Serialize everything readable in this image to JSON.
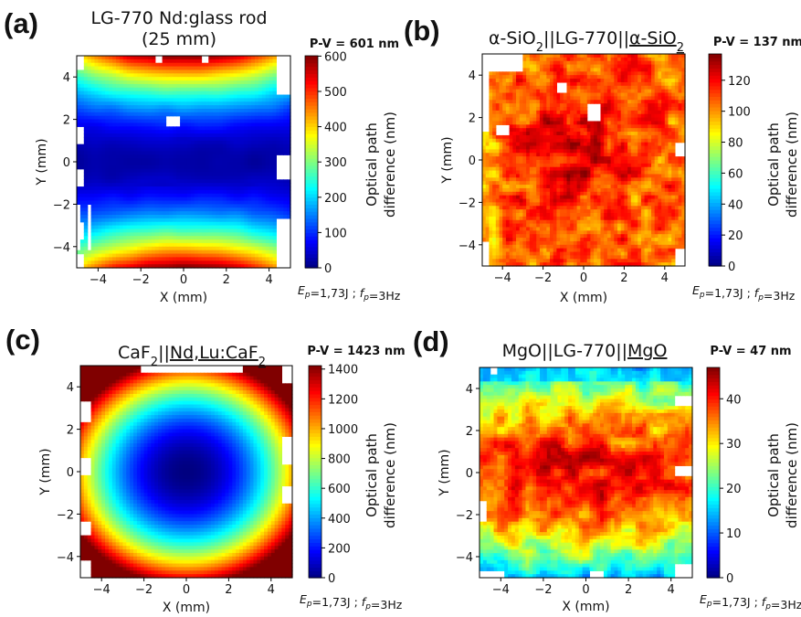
{
  "figure": {
    "panels": [
      {
        "letter": "(a)",
        "title_lines": [
          "LG-770 Nd:glass rod",
          "(25 mm)"
        ],
        "pv": "P-V = 601 nm",
        "cbar_label": [
          "Optical path",
          "difference (nm)"
        ],
        "cbar_ticks": [
          "0",
          "100",
          "200",
          "300",
          "400",
          "500",
          "600"
        ],
        "xlabel": "X (mm)",
        "ylabel": "Y (mm)",
        "footnote": "E_p=1,73J ; f_p=3Hz"
      },
      {
        "letter": "(b)",
        "title_parts": [
          {
            "t": "α-SiO"
          },
          {
            "t": "2",
            "sub": true
          },
          {
            "t": "||LG-770||"
          },
          {
            "t": "α-SiO",
            "u": true
          },
          {
            "t": "2",
            "sub": true,
            "u": true
          }
        ],
        "pv": "P-V = 137 nm",
        "cbar_label": [
          "Optical path",
          "difference (nm)"
        ],
        "cbar_ticks": [
          "0",
          "20",
          "40",
          "60",
          "80",
          "100",
          "120"
        ],
        "xlabel": "X (mm)",
        "ylabel": "Y (mm)",
        "footnote": "E_p=1,73J ; f_p=3Hz"
      },
      {
        "letter": "(c)",
        "title_parts": [
          {
            "t": "CaF"
          },
          {
            "t": "2",
            "sub": true
          },
          {
            "t": "||"
          },
          {
            "t": "Nd,Lu:CaF",
            "u": true
          },
          {
            "t": "2",
            "sub": true,
            "u": true
          }
        ],
        "pv": "P-V = 1423 nm",
        "cbar_label": [
          "Optical path",
          "difference (nm)"
        ],
        "cbar_ticks": [
          "0",
          "200",
          "400",
          "600",
          "800",
          "1000",
          "1200",
          "1400"
        ],
        "xlabel": "X (mm)",
        "ylabel": "Y (mm)",
        "footnote": "E_p=1,73J ; f_p=3Hz"
      },
      {
        "letter": "(d)",
        "title_parts": [
          {
            "t": "MgO||LG-770||"
          },
          {
            "t": "MgO",
            "u": true
          }
        ],
        "pv": "P-V = 47 nm",
        "cbar_label": [
          "Optical path",
          "difference (nm)"
        ],
        "cbar_ticks": [
          "0",
          "10",
          "20",
          "30",
          "40"
        ],
        "xlabel": "X (mm)",
        "ylabel": "Y (mm)",
        "footnote": "E_p=1,73J ; f_p=3Hz"
      }
    ]
  },
  "chart_data": [
    {
      "type": "heatmap",
      "panel": "(a)",
      "title": "LG-770 Nd:glass rod (25 mm)",
      "pv_nm": 601,
      "xlabel": "X (mm)",
      "ylabel": "Y (mm)",
      "xlim": [
        -5,
        5
      ],
      "ylim": [
        -5,
        5
      ],
      "xticks": [
        -4,
        -2,
        0,
        2,
        4
      ],
      "yticks": [
        -4,
        -2,
        0,
        2,
        4
      ],
      "colorbar": {
        "label": "Optical path difference (nm)",
        "range": [
          0,
          601
        ],
        "ticks": [
          0,
          100,
          200,
          300,
          400,
          500,
          600
        ],
        "colormap": "jet"
      },
      "pattern": "saddle: low (~0-50 nm) along horizontal centre band, rising to ~600 nm at top and bottom edges",
      "footnote": "Ep=1,73J ; fp=3Hz"
    },
    {
      "type": "heatmap",
      "panel": "(b)",
      "title": "α-SiO2||LG-770||α-SiO2",
      "pv_nm": 137,
      "xlabel": "X (mm)",
      "ylabel": "Y (mm)",
      "xlim": [
        -5,
        5
      ],
      "ylim": [
        -5,
        5
      ],
      "xticks": [
        -4,
        -2,
        0,
        2,
        4
      ],
      "yticks": [
        -4,
        -2,
        0,
        2,
        4
      ],
      "colorbar": {
        "label": "Optical path difference (nm)",
        "range": [
          0,
          137
        ],
        "ticks": [
          0,
          20,
          40,
          60,
          80,
          100,
          120
        ],
        "colormap": "jet"
      },
      "pattern": "noisy, mostly 90-130 nm, higher toward centre-left, lower (~70 nm) at left edge",
      "footnote": "Ep=1,73J ; fp=3Hz"
    },
    {
      "type": "heatmap",
      "panel": "(c)",
      "title": "CaF2||Nd,Lu:CaF2",
      "pv_nm": 1423,
      "xlabel": "X (mm)",
      "ylabel": "Y (mm)",
      "xlim": [
        -5,
        5
      ],
      "ylim": [
        -5,
        5
      ],
      "xticks": [
        -4,
        -2,
        0,
        2,
        4
      ],
      "yticks": [
        -4,
        -2,
        0,
        2,
        4
      ],
      "colorbar": {
        "label": "Optical path difference (nm)",
        "range": [
          0,
          1423
        ],
        "ticks": [
          0,
          200,
          400,
          600,
          800,
          1000,
          1200,
          1400
        ],
        "colormap": "jet"
      },
      "pattern": "elliptical bowl: ~0 nm at centre rising to ~1400 nm at top-left corner",
      "footnote": "Ep=1,73J ; fp=3Hz"
    },
    {
      "type": "heatmap",
      "panel": "(d)",
      "title": "MgO||LG-770||MgO",
      "pv_nm": 47,
      "xlabel": "X (mm)",
      "ylabel": "Y (mm)",
      "xlim": [
        -5,
        5
      ],
      "ylim": [
        -5,
        5
      ],
      "xticks": [
        -4,
        -2,
        0,
        2,
        4
      ],
      "yticks": [
        -4,
        -2,
        0,
        2,
        4
      ],
      "colorbar": {
        "label": "Optical path difference (nm)",
        "range": [
          0,
          47
        ],
        "ticks": [
          0,
          10,
          20,
          30,
          40
        ],
        "colormap": "jet"
      },
      "pattern": "noisy, maximum (~45 nm) along centre band, lower (~10-20 nm) at top and bottom edges",
      "footnote": "Ep=1,73J ; fp=3Hz"
    }
  ]
}
